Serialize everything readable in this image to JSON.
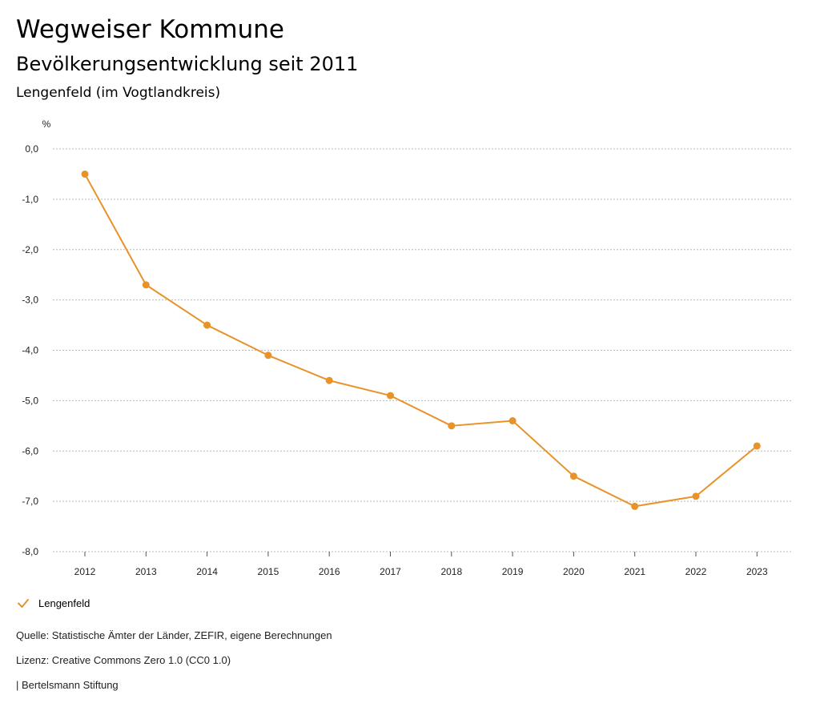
{
  "header": {
    "title": "Wegweiser Kommune",
    "subtitle": "Bevölkerungsentwicklung seit 2011",
    "region": "Lengenfeld (im Vogtlandkreis)"
  },
  "chart_data": {
    "type": "line",
    "title": "Bevölkerungsentwicklung seit 2011",
    "ylabel": "%",
    "xlabel": "",
    "categories": [
      "2012",
      "2013",
      "2014",
      "2015",
      "2016",
      "2017",
      "2018",
      "2019",
      "2020",
      "2021",
      "2022",
      "2023"
    ],
    "series": [
      {
        "name": "Lengenfeld",
        "color": "#e8922a",
        "values": [
          -0.5,
          -2.7,
          -3.5,
          -4.1,
          -4.6,
          -4.9,
          -5.5,
          -5.4,
          -6.5,
          -7.1,
          -6.9,
          -5.9
        ]
      }
    ],
    "ylim": [
      -8.0,
      0.0
    ],
    "yticks": [
      0,
      -1,
      -2,
      -3,
      -4,
      -5,
      -6,
      -7,
      -8
    ],
    "ytick_labels": [
      "0,0",
      "-1,0",
      "-2,0",
      "-3,0",
      "-4,0",
      "-5,0",
      "-6,0",
      "-7,0",
      "-8,0"
    ],
    "grid": true,
    "legend_position": "bottom-left"
  },
  "legend": {
    "label": "Lengenfeld",
    "color": "#e8922a"
  },
  "footer": {
    "source": "Quelle: Statistische Ämter der Länder, ZEFIR, eigene Berechnungen",
    "license": "Lizenz: Creative Commons Zero 1.0 (CC0 1.0)",
    "publisher": "| Bertelsmann Stiftung"
  }
}
